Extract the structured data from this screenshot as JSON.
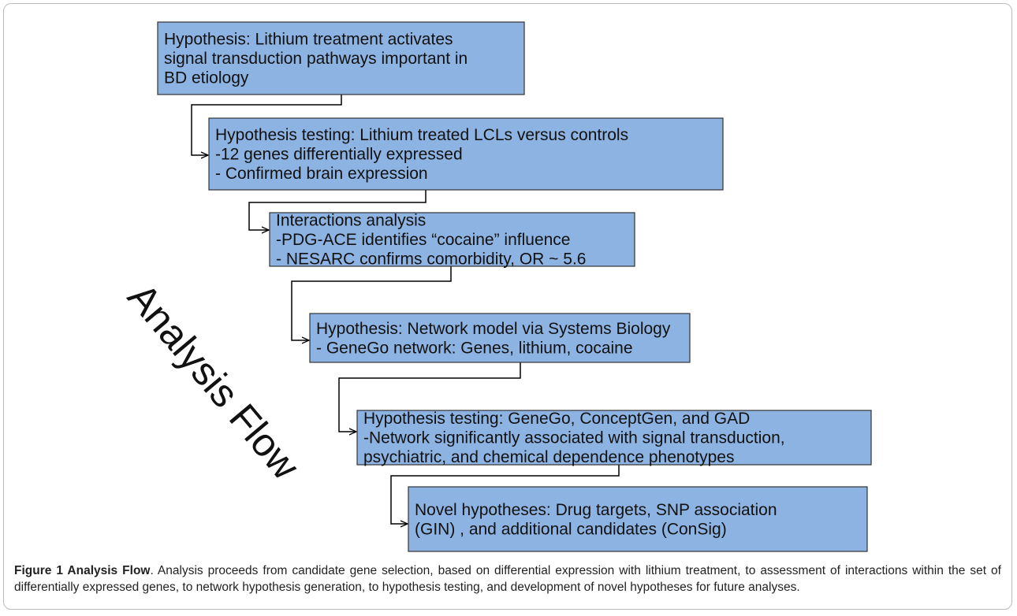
{
  "diagram": {
    "boxes": [
      {
        "lines": [
          "Hypothesis: Lithium treatment activates",
          "signal transduction pathways important in",
          "BD etiology"
        ]
      },
      {
        "lines": [
          "Hypothesis testing:  Lithium treated LCLs versus controls",
          "-12 genes differentially expressed",
          "- Confirmed brain expression"
        ]
      },
      {
        "lines": [
          "Interactions analysis",
          "-PDG-ACE identifies “cocaine” influence",
          "- NESARC confirms comorbidity, OR ~ 5.6"
        ]
      },
      {
        "lines": [
          "Hypothesis: Network model via Systems Biology",
          "- GeneGo network: Genes, lithium, cocaine"
        ]
      },
      {
        "lines": [
          "Hypothesis testing: GeneGo, ConceptGen, and GAD",
          "-Network significantly associated with signal transduction,",
          "psychiatric, and chemical dependence phenotypes"
        ]
      },
      {
        "lines": [
          "Novel hypotheses: Drug targets, SNP association",
          "(GIN) , and additional candidates (ConSig)"
        ]
      }
    ],
    "side_label": "Analysis Flow"
  },
  "caption": {
    "label": "Figure 1 Analysis Flow",
    "text": ". Analysis proceeds from candidate gene selection, based on differential expression with lithium treatment, to assessment of interactions within the set of differentially expressed genes, to network hypothesis generation, to hypothesis testing, and development of novel hypotheses for future analyses."
  }
}
